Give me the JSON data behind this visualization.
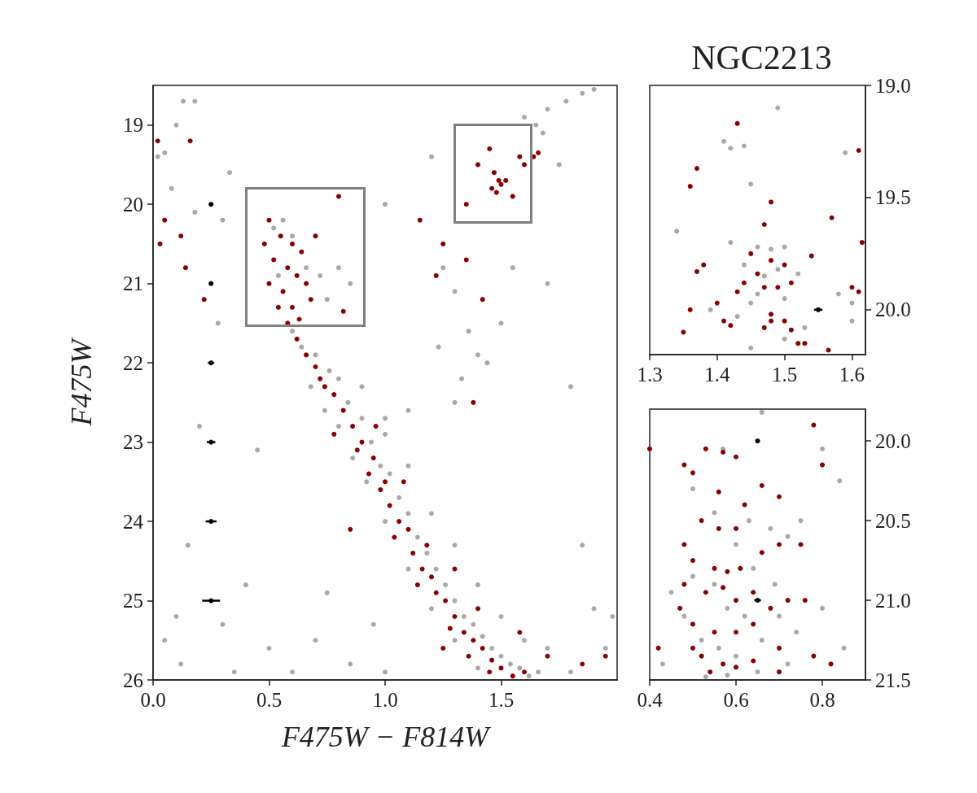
{
  "chart_data": [
    {
      "type": "scatter",
      "xlabel": "F475W − F814W",
      "ylabel": "F475W",
      "xlim": [
        0,
        2
      ],
      "ylim": [
        26,
        18.5
      ],
      "xticks": [
        {
          "value": 0,
          "label": "0.0"
        },
        0.5,
        {
          "value": 1,
          "label": "1.0"
        },
        1.5
      ],
      "yticks": [
        19,
        20,
        21,
        22,
        23,
        24,
        25,
        26
      ],
      "marker": "circle",
      "series": [
        {
          "color": "#a9a9a9",
          "x": [
            0.02,
            0.05,
            0.1,
            0.13,
            0.18,
            0.08,
            0.18,
            0.3,
            0.33,
            0.28,
            0.2,
            0.15,
            0.1,
            0.05,
            0.12,
            0.3,
            0.4,
            0.5,
            0.45,
            0.35,
            0.6,
            0.7,
            0.85,
            0.95,
            1.0,
            0.75,
            1.6,
            1.7,
            1.78,
            1.85,
            1.9,
            1.65,
            1.68,
            1.75,
            1.2,
            1.0,
            1.25,
            1.3,
            1.36,
            1.4,
            1.44,
            1.33,
            1.23,
            1.3,
            1.1,
            1.0,
            1.5,
            1.55,
            1.7,
            1.8,
            1.85,
            1.9,
            1.95,
            1.8,
            1.7,
            1.98,
            0.52,
            0.56,
            0.6,
            0.66,
            0.54,
            0.72,
            0.75,
            0.8,
            0.85,
            0.6,
            0.64,
            0.7,
            0.76,
            0.8,
            0.84,
            0.9,
            0.94,
            0.98,
            1.02,
            1.06,
            1.1,
            1.14,
            1.18,
            1.22,
            1.26,
            1.3,
            1.34,
            1.38,
            1.42,
            1.46,
            1.5,
            1.54,
            1.58,
            1.62,
            1.66,
            1.4,
            1.3,
            1.2,
            1.1,
            1.0,
            0.92,
            0.86,
            0.8,
            0.74,
            0.68,
            0.9,
            1.0,
            1.1,
            1.2,
            1.3,
            1.4,
            1.5,
            1.6
          ],
          "values": [
            19.4,
            19.35,
            19.0,
            18.7,
            18.7,
            19.8,
            20.1,
            20.2,
            19.6,
            21.5,
            22.8,
            24.3,
            25.2,
            25.5,
            25.8,
            25.3,
            24.8,
            25.6,
            23.1,
            25.9,
            25.9,
            25.5,
            25.8,
            25.3,
            25.9,
            24.9,
            18.9,
            18.8,
            18.7,
            18.6,
            18.55,
            19.0,
            19.1,
            19.5,
            19.4,
            20.0,
            20.8,
            21.1,
            21.6,
            21.9,
            22.0,
            22.2,
            21.8,
            22.5,
            22.6,
            22.7,
            21.5,
            20.8,
            21.0,
            22.3,
            24.3,
            25.1,
            25.6,
            25.9,
            25.6,
            25.2,
            20.3,
            20.2,
            20.4,
            20.8,
            20.9,
            20.9,
            21.2,
            20.8,
            21.0,
            21.6,
            21.8,
            21.9,
            22.1,
            22.2,
            22.5,
            22.7,
            23.0,
            23.3,
            23.4,
            23.7,
            23.9,
            24.2,
            24.4,
            24.6,
            24.8,
            25.0,
            25.2,
            25.3,
            25.45,
            25.6,
            25.7,
            25.8,
            25.85,
            25.95,
            25.9,
            25.85,
            25.5,
            25.1,
            24.6,
            24.0,
            23.5,
            23.2,
            22.8,
            22.6,
            22.3,
            22.3,
            22.9,
            23.3,
            23.9,
            24.3,
            24.8,
            25.2,
            25.5
          ]
        },
        {
          "color": "#8b0000",
          "x": [
            0.5,
            0.55,
            0.6,
            0.52,
            0.58,
            0.64,
            0.62,
            0.5,
            0.56,
            0.66,
            0.6,
            0.54,
            0.7,
            0.68,
            0.63,
            0.58,
            0.82,
            0.48,
            0.62,
            0.66,
            0.7,
            0.74,
            0.78,
            0.72,
            0.82,
            0.86,
            0.9,
            0.88,
            0.95,
            0.93,
            1.0,
            0.98,
            1.02,
            1.06,
            1.1,
            1.04,
            1.12,
            1.16,
            1.2,
            1.14,
            1.22,
            1.26,
            1.3,
            1.28,
            1.34,
            1.38,
            1.42,
            1.36,
            1.46,
            1.5,
            1.45,
            1.55,
            1.6,
            0.78,
            0.96,
            1.08,
            1.18,
            1.3,
            1.4,
            1.58,
            1.7,
            1.85,
            1.95,
            0.85,
            1.25,
            0.02,
            0.16,
            0.05,
            0.03,
            0.12,
            0.14,
            0.22,
            0.8,
            1.15,
            1.25,
            1.22,
            1.35,
            1.42,
            1.38,
            1.45,
            1.47,
            1.49,
            1.5,
            1.46,
            1.52,
            1.48,
            1.4,
            1.55,
            1.35,
            1.58,
            1.6,
            1.64,
            1.66
          ],
          "values": [
            20.2,
            20.4,
            20.5,
            20.7,
            20.8,
            20.6,
            20.9,
            21.0,
            21.1,
            21.0,
            21.3,
            21.3,
            20.4,
            21.2,
            21.45,
            21.5,
            21.35,
            20.5,
            21.7,
            21.9,
            22.05,
            22.3,
            22.4,
            22.2,
            22.6,
            22.8,
            23.0,
            23.1,
            23.2,
            23.4,
            23.5,
            23.6,
            23.8,
            24.0,
            24.1,
            24.2,
            24.4,
            24.6,
            24.7,
            24.8,
            24.9,
            25.0,
            25.2,
            25.35,
            25.4,
            25.5,
            25.6,
            25.7,
            25.75,
            25.85,
            25.9,
            25.95,
            25.9,
            22.9,
            22.8,
            23.5,
            24.3,
            24.6,
            25.1,
            25.4,
            25.7,
            25.8,
            25.7,
            24.1,
            25.6,
            19.2,
            19.2,
            20.2,
            20.5,
            20.4,
            20.8,
            21.2,
            19.9,
            20.2,
            20.5,
            20.9,
            20.7,
            21.2,
            22.5,
            19.3,
            19.6,
            19.7,
            19.75,
            19.8,
            19.7,
            19.85,
            19.5,
            19.9,
            20.0,
            19.4,
            19.5,
            19.4,
            19.35
          ]
        },
        {
          "color": "#000000",
          "x": [
            0.25,
            0.25,
            0.25,
            0.25,
            0.25,
            0.25
          ],
          "values": [
            20,
            21,
            22,
            23,
            24,
            25
          ],
          "xerrors": [
            0.003,
            0.006,
            0.01,
            0.015,
            0.02,
            0.035
          ]
        }
      ]
    },
    {
      "type": "scatter",
      "title": "NGC2213",
      "xlim": [
        1.3,
        1.62
      ],
      "ylim": [
        20.2,
        19.0
      ],
      "xticks": [
        1.3,
        1.4,
        1.5,
        1.6
      ],
      "yticks": [
        {
          "value": 19,
          "label": "19.0"
        },
        19.5,
        {
          "value": 20,
          "label": "20.0"
        }
      ],
      "marker": "circle",
      "series": [
        {
          "color": "#a9a9a9",
          "x": [
            1.49,
            1.41,
            1.42,
            1.44,
            1.45,
            1.59,
            1.34,
            1.42,
            1.46,
            1.48,
            1.5,
            1.44,
            1.47,
            1.49,
            1.52,
            1.46,
            1.5,
            1.45,
            1.39,
            1.43,
            1.58,
            1.6,
            1.6,
            1.53,
            1.5,
            1.45
          ],
          "values": [
            19.1,
            19.25,
            19.28,
            19.27,
            19.44,
            19.3,
            19.65,
            19.7,
            19.72,
            19.73,
            19.72,
            19.8,
            19.85,
            19.82,
            19.84,
            19.93,
            19.95,
            19.97,
            20.0,
            20.03,
            19.93,
            19.97,
            20.05,
            20.08,
            20.13,
            20.17
          ]
        },
        {
          "color": "#8b0000",
          "x": [
            1.43,
            1.37,
            1.36,
            1.57,
            1.61,
            1.615,
            1.48,
            1.47,
            1.54,
            1.38,
            1.37,
            1.45,
            1.46,
            1.48,
            1.5,
            1.44,
            1.47,
            1.49,
            1.51,
            1.43,
            1.6,
            1.61,
            1.4,
            1.36,
            1.41,
            1.42,
            1.48,
            1.48,
            1.5,
            1.47,
            1.51,
            1.53,
            1.565,
            1.35,
            1.52
          ],
          "values": [
            19.17,
            19.37,
            19.45,
            19.59,
            19.29,
            19.7,
            19.52,
            19.62,
            19.76,
            19.8,
            19.83,
            19.75,
            19.84,
            19.78,
            19.8,
            19.88,
            19.9,
            19.9,
            19.88,
            19.92,
            19.9,
            19.92,
            19.97,
            20.0,
            20.05,
            20.07,
            20.02,
            20.05,
            20.05,
            20.08,
            20.09,
            20.15,
            20.18,
            20.1,
            20.15
          ]
        },
        {
          "color": "#000000",
          "x": [
            1.55
          ],
          "values": [
            20.0
          ],
          "xerrors": [
            0.005
          ]
        }
      ]
    },
    {
      "type": "scatter",
      "xlim": [
        0.4,
        0.9
      ],
      "ylim": [
        21.5,
        19.8
      ],
      "xticks": [
        0.4,
        0.6,
        0.8
      ],
      "yticks": [
        {
          "value": 20,
          "label": "20.0"
        },
        20.5,
        {
          "value": 21,
          "label": "21.0"
        },
        21.5
      ],
      "marker": "circle",
      "series": [
        {
          "color": "#a9a9a9",
          "x": [
            0.57,
            0.66,
            0.8,
            0.84,
            0.5,
            0.55,
            0.6,
            0.63,
            0.68,
            0.72,
            0.75,
            0.5,
            0.55,
            0.58,
            0.62,
            0.66,
            0.7,
            0.74,
            0.8,
            0.45,
            0.48,
            0.52,
            0.56,
            0.6,
            0.65,
            0.72,
            0.85,
            0.43,
            0.53,
            0.58,
            0.69,
            0.64
          ],
          "values": [
            20.05,
            19.82,
            20.05,
            20.25,
            20.3,
            20.45,
            20.65,
            20.5,
            20.55,
            20.6,
            20.5,
            20.85,
            20.9,
            21.05,
            21.1,
            21.25,
            21.1,
            21.2,
            21.05,
            20.95,
            21.1,
            21.25,
            21.3,
            21.35,
            21.45,
            21.4,
            21.3,
            21.4,
            21.48,
            21.47,
            20.9,
            20.8
          ]
        },
        {
          "color": "#8b0000",
          "x": [
            0.4,
            0.48,
            0.5,
            0.53,
            0.57,
            0.6,
            0.7,
            0.78,
            0.8,
            0.66,
            0.62,
            0.56,
            0.52,
            0.56,
            0.6,
            0.48,
            0.5,
            0.55,
            0.58,
            0.61,
            0.66,
            0.7,
            0.48,
            0.53,
            0.57,
            0.6,
            0.64,
            0.68,
            0.72,
            0.47,
            0.5,
            0.55,
            0.6,
            0.64,
            0.7,
            0.52,
            0.57,
            0.6,
            0.54,
            0.64,
            0.7,
            0.78,
            0.82,
            0.42,
            0.5,
            0.76,
            0.75
          ],
          "values": [
            20.05,
            20.15,
            20.2,
            20.05,
            20.07,
            20.1,
            20.35,
            19.9,
            20.15,
            20.28,
            20.4,
            20.32,
            20.5,
            20.55,
            20.55,
            20.65,
            20.75,
            20.8,
            20.82,
            20.8,
            20.7,
            20.65,
            20.9,
            20.95,
            20.92,
            21.0,
            20.95,
            21.05,
            21.0,
            21.05,
            21.15,
            21.2,
            21.2,
            21.15,
            21.3,
            21.35,
            21.4,
            21.42,
            21.45,
            21.38,
            21.45,
            21.35,
            21.4,
            21.3,
            21.3,
            21.0,
            20.65
          ]
        },
        {
          "color": "#000000",
          "x": [
            0.65,
            0.65
          ],
          "values": [
            20.0,
            21.0
          ],
          "xerrors": [
            0.003,
            0.006
          ]
        }
      ]
    }
  ]
}
